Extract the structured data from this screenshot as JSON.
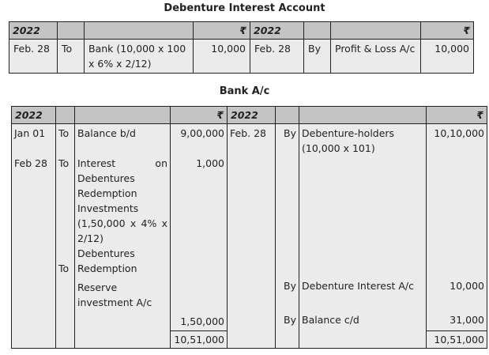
{
  "debenture_interest_account": {
    "title": "Debenture Interest Account",
    "header": {
      "year_left": "2022",
      "currency_left": "₹",
      "year_right": "2022",
      "currency_right": "₹"
    },
    "row": {
      "date_dr": "Feb. 28",
      "to": "To",
      "particulars_dr": "Bank (10,000 x 100 x 6% x 2/12)",
      "amount_dr": "10,000",
      "date_cr": "Feb. 28",
      "by": "By",
      "particulars_cr": "Profit & Loss A/c",
      "amount_cr": "10,000"
    }
  },
  "bank_account": {
    "title": "Bank A/c",
    "header": {
      "year_left": "2022",
      "currency_left": "₹",
      "year_right": "2022",
      "currency_right": "₹"
    },
    "debit": [
      {
        "date": "Jan 01",
        "to": "To",
        "particulars": "Balance b/d",
        "amount": "9,00,000"
      },
      {
        "date": "Feb 28",
        "to": "To",
        "particulars": "Interest on Debentures Redemption Investments (1,50,000 x 4% x 2/12)",
        "amount": "1,000"
      },
      {
        "date": "",
        "to": "To",
        "particulars": "Debentures Redemption",
        "amount": ""
      },
      {
        "date": "",
        "to": "",
        "particulars": "Reserve investment A/c",
        "amount": "1,50,000"
      }
    ],
    "credit": [
      {
        "date": "Feb. 28",
        "by": "By",
        "particulars": "Debenture-holders (10,000 x 101)",
        "amount": "10,10,000"
      },
      {
        "date": "",
        "by": "By",
        "particulars": "Debenture Interest A/c",
        "amount": "10,000"
      },
      {
        "date": "",
        "by": "By",
        "particulars": "Balance c/d",
        "amount": "31,000"
      }
    ],
    "total_dr": "10,51,000",
    "total_cr": "10,51,000"
  }
}
